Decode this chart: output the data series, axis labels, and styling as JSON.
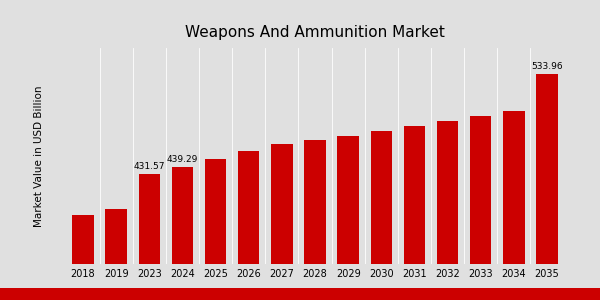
{
  "title": "Weapons And Ammunition Market",
  "ylabel": "Market Value in USD Billion",
  "categories": [
    "2018",
    "2019",
    "2023",
    "2024",
    "2025",
    "2026",
    "2027",
    "2028",
    "2029",
    "2030",
    "2031",
    "2032",
    "2033",
    "2034",
    "2035"
  ],
  "values": [
    390,
    396,
    431.57,
    439.29,
    447,
    455,
    462,
    466,
    470,
    475,
    481,
    486,
    491,
    496,
    533.96
  ],
  "labeled_bars": {
    "2023": "431.57",
    "2024": "439.29",
    "2035": "533.96"
  },
  "bar_color": "#cc0000",
  "bg_color": "#e0e0e0",
  "title_fontsize": 11,
  "ylabel_fontsize": 7.5,
  "tick_fontsize": 7,
  "bar_label_fontsize": 6.5,
  "ylim_min": 340,
  "ylim_max": 560,
  "bottom_bar_color": "#cc0000"
}
